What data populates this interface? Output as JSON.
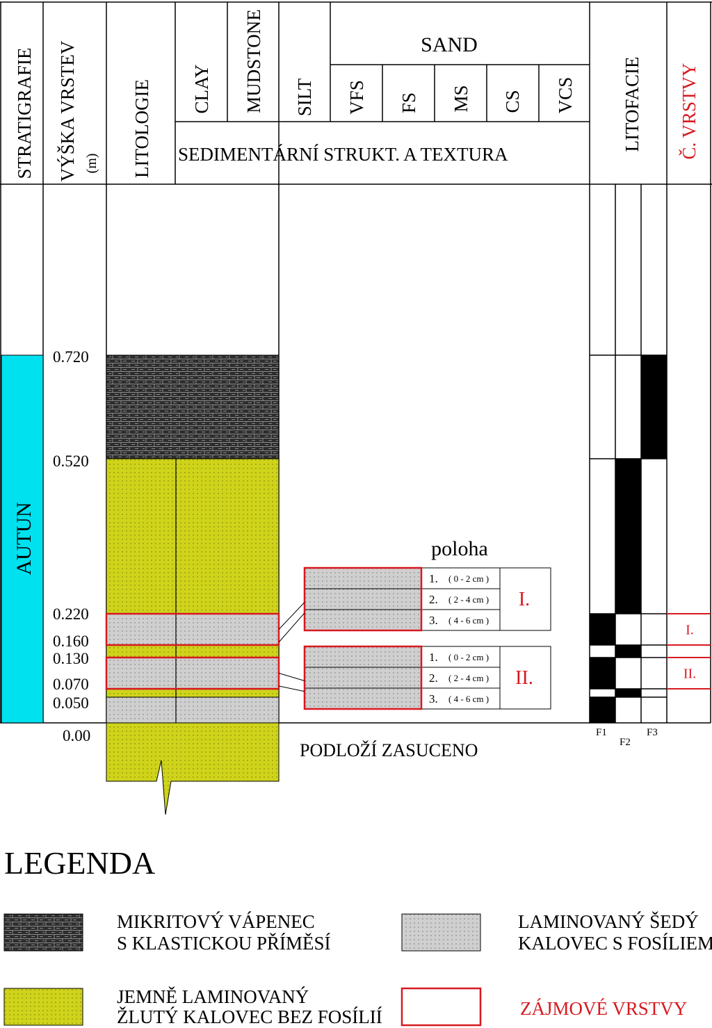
{
  "headers": {
    "stratigrafie": "STRATIGRAFIE",
    "vyska_vrstev": "VÝŠKA VRSTEV",
    "vyska_unit": "(m)",
    "litologie": "LITOLOGIE",
    "clay": "CLAY",
    "mudstone": "MUDSTONE",
    "silt": "SILT",
    "sand": "SAND",
    "sand_classes": [
      "VFS",
      "FS",
      "MS",
      "CS",
      "VCS"
    ],
    "sed_struktura": "SEDIMENTÁRNÍ STRUKT. A TEXTURA",
    "litofacie": "LITOFACIE",
    "c_vrstvy": "Č. VRSTVY"
  },
  "stratigraphy": {
    "unit": "AUTUN",
    "color": "#00e1f0",
    "top_m": 0.72,
    "base_m": 0.0
  },
  "depth_labels": [
    "0.720",
    "0.520",
    "0.220",
    "0.160",
    "0.130",
    "0.070",
    "0.050",
    "0.00"
  ],
  "lithology": [
    {
      "top": 0.72,
      "base": 0.52,
      "type": "limestone"
    },
    {
      "top": 0.52,
      "base": 0.22,
      "type": "yellow"
    },
    {
      "top": 0.22,
      "base": 0.16,
      "type": "grey"
    },
    {
      "top": 0.16,
      "base": 0.13,
      "type": "yellow"
    },
    {
      "top": 0.13,
      "base": 0.07,
      "type": "grey"
    },
    {
      "top": 0.07,
      "base": 0.05,
      "type": "yellow"
    },
    {
      "top": 0.05,
      "base": 0.0,
      "type": "grey"
    }
  ],
  "layers_of_interest": [
    {
      "top": 0.22,
      "base": 0.16,
      "label": "I."
    },
    {
      "top": 0.13,
      "base": 0.07,
      "label": "II."
    }
  ],
  "litofacie": {
    "columns": [
      "F1",
      "F2",
      "F3"
    ],
    "intervals": [
      {
        "top": 0.72,
        "base": 0.52,
        "facies": "F3"
      },
      {
        "top": 0.52,
        "base": 0.22,
        "facies": "F2"
      },
      {
        "top": 0.22,
        "base": 0.16,
        "facies": "F1"
      },
      {
        "top": 0.16,
        "base": 0.13,
        "facies": "F2"
      },
      {
        "top": 0.13,
        "base": 0.07,
        "facies": "F1"
      },
      {
        "top": 0.07,
        "base": 0.05,
        "facies": "F2"
      },
      {
        "top": 0.05,
        "base": 0.0,
        "facies": "F1"
      }
    ]
  },
  "poloha": {
    "title": "poloha",
    "groups": [
      {
        "label": "I.",
        "items": [
          {
            "n": "1.",
            "range": "( 0 - 2 cm )"
          },
          {
            "n": "2.",
            "range": "( 2 - 4 cm )"
          },
          {
            "n": "3.",
            "range": "( 4 - 6 cm )"
          }
        ]
      },
      {
        "label": "II.",
        "items": [
          {
            "n": "1.",
            "range": "( 0 - 2 cm )"
          },
          {
            "n": "2.",
            "range": "( 2 - 4 cm )"
          },
          {
            "n": "3.",
            "range": "( 4 - 6 cm )"
          }
        ]
      }
    ]
  },
  "podlozi": "PODLOŽÍ ZASUCENO",
  "legend": {
    "title": "LEGENDA",
    "limestone": [
      "MIKRITOVÝ VÁPENEC",
      "S KLASTICKOU PŘÍMĚSÍ"
    ],
    "grey": [
      "LAMINOVANÝ ŠEDÝ",
      "KALOVEC S FOSÍLIEMI"
    ],
    "yellow": [
      "JEMNĚ LAMINOVANÝ",
      "ŽLUTÝ KALOVEC BEZ FOSÍLIÍ"
    ],
    "interest": "ZÁJMOVÉ VRSTVY"
  },
  "colors": {
    "yellow": "#cfd41b",
    "grey": "#cfcfcf",
    "limestone": "#2d2d2d",
    "interest": "#d71920",
    "autun": "#00e1f0"
  }
}
